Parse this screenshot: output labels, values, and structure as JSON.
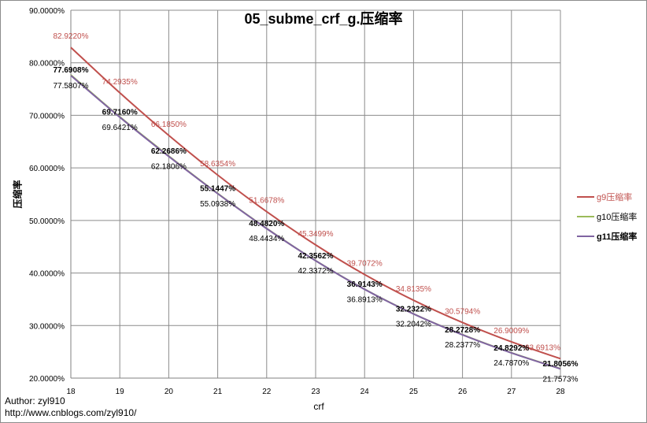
{
  "chart_data": {
    "type": "line",
    "title": "05_subme_crf_g.压缩率",
    "xlabel": "crf",
    "ylabel": "压缩率",
    "x": [
      18,
      19,
      20,
      21,
      22,
      23,
      24,
      25,
      26,
      27,
      28
    ],
    "x_ticks": [
      "18",
      "19",
      "20",
      "21",
      "22",
      "23",
      "24",
      "25",
      "26",
      "27",
      "28"
    ],
    "ylim": [
      20,
      90
    ],
    "y_ticks": [
      "20.0000%",
      "30.0000%",
      "40.0000%",
      "50.0000%",
      "60.0000%",
      "70.0000%",
      "80.0000%",
      "90.0000%"
    ],
    "grid": true,
    "legend_position": "right",
    "series": [
      {
        "name": "g9压缩率",
        "color": "#c0504d",
        "values": [
          82.922,
          74.2935,
          66.185,
          58.6354,
          51.6678,
          45.3499,
          39.7072,
          34.8135,
          30.5794,
          26.9009,
          23.6913
        ],
        "labels": [
          "82.9220%",
          "74.2935%",
          "66.1850%",
          "58.6354%",
          "51.6678%",
          "45.3499%",
          "39.7072%",
          "34.8135%",
          "30.5794%",
          "26.9009%",
          "23.6913%"
        ]
      },
      {
        "name": "g10压缩率",
        "color": "#9bbb59",
        "values": [
          77.6908,
          69.716,
          62.2686,
          55.1447,
          48.482,
          42.3562,
          36.9143,
          32.2322,
          28.2728,
          24.8292,
          21.8056
        ],
        "labels": [
          "77.6908%",
          "69.7160%",
          "62.2686%",
          "55.1447%",
          "48.4820%",
          "42.3562%",
          "36.9143%",
          "32.2322%",
          "28.2728%",
          "24.8292%",
          "21.8056%"
        ]
      },
      {
        "name": "g11压缩率",
        "color": "#8064a2",
        "values": [
          77.5807,
          69.6421,
          62.1806,
          55.0938,
          48.4434,
          42.3372,
          36.8913,
          32.2042,
          28.2377,
          24.787,
          21.7573
        ],
        "labels": [
          "77.5807%",
          "69.6421%",
          "62.1806%",
          "55.0938%",
          "48.4434%",
          "42.3372%",
          "36.8913%",
          "32.2042%",
          "28.2377%",
          "24.7870%",
          "21.7573%"
        ]
      }
    ]
  },
  "footer": {
    "author": "Author: zyl910",
    "url": "http://www.cnblogs.com/zyl910/"
  }
}
